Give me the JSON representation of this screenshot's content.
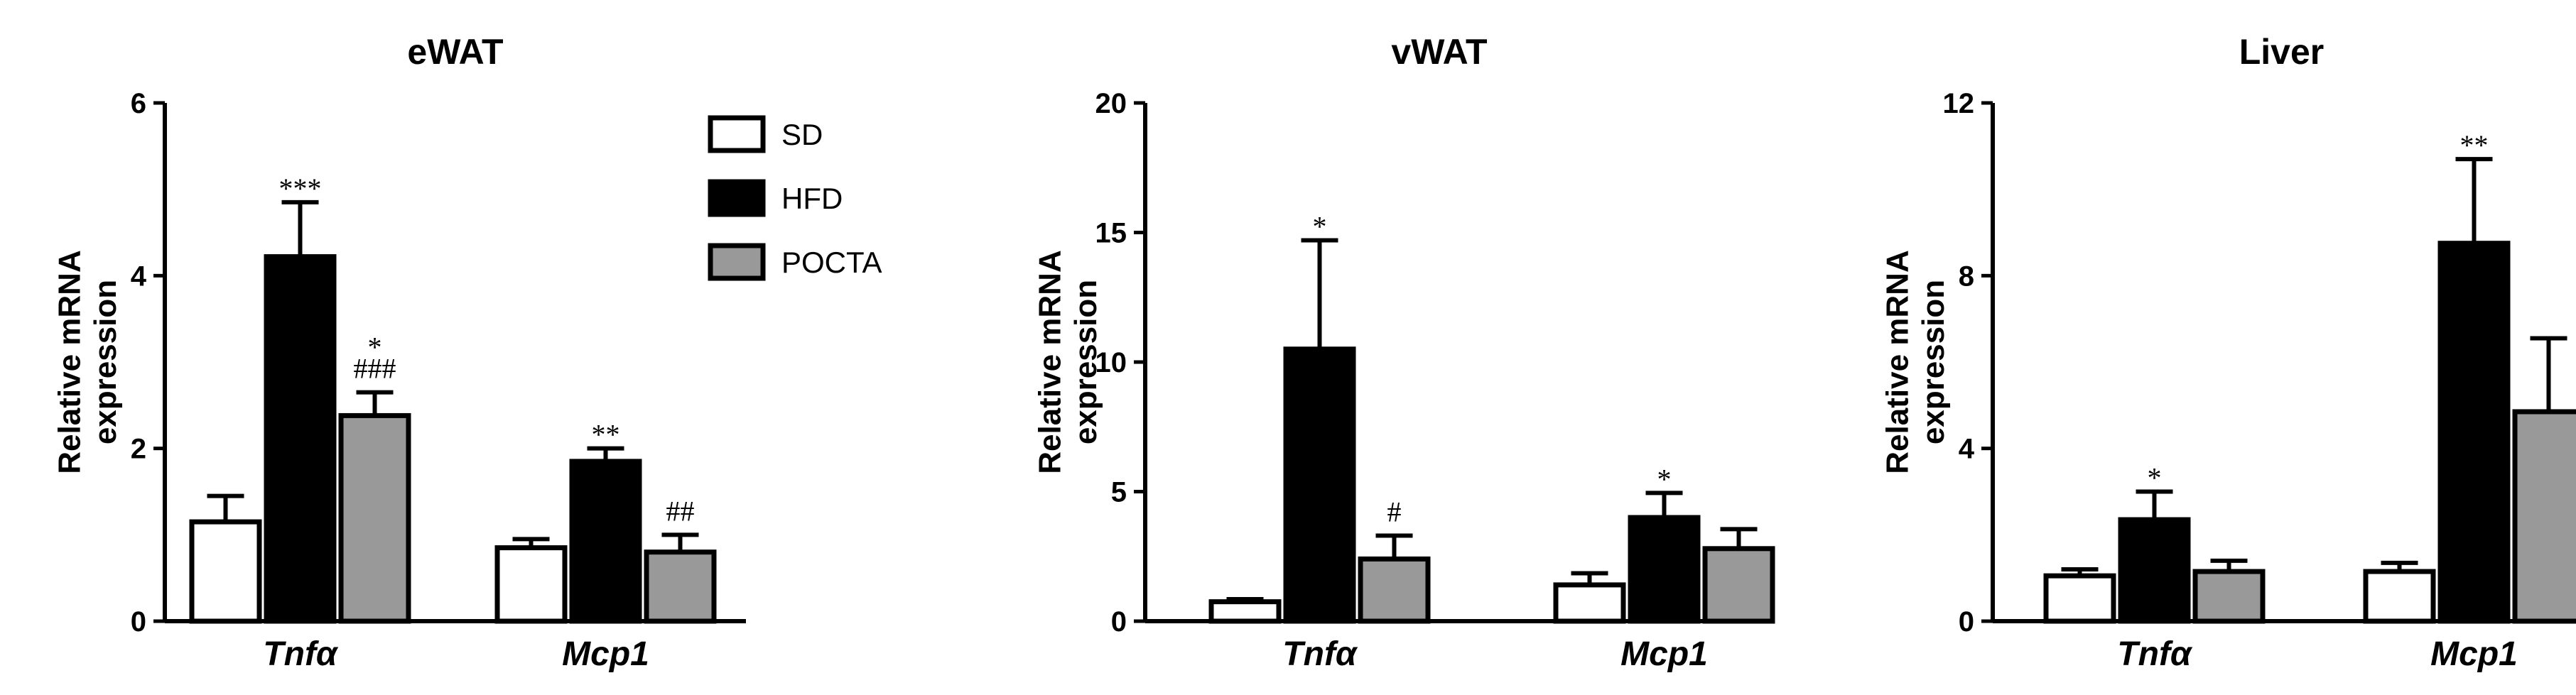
{
  "series_colors": {
    "SD": "#ffffff",
    "HFD": "#000000",
    "POCTA": "#999999"
  },
  "legend": [
    {
      "name": "SD",
      "color": "#ffffff"
    },
    {
      "name": "HFD",
      "color": "#000000"
    },
    {
      "name": "POCTA",
      "color": "#999999"
    }
  ],
  "chart_data": [
    {
      "type": "bar",
      "title": "eWAT",
      "ylabel": "Relative mRNA expression",
      "ylim": [
        0,
        6
      ],
      "yticks": [
        0,
        2,
        4,
        6
      ],
      "categories": [
        "Tnfα",
        "Mcp1"
      ],
      "series": [
        {
          "name": "SD",
          "values": [
            1.15,
            0.85
          ],
          "errors": [
            0.3,
            0.1
          ],
          "annotations": [
            "",
            ""
          ]
        },
        {
          "name": "HFD",
          "values": [
            4.22,
            1.85
          ],
          "errors": [
            0.63,
            0.15
          ],
          "annotations": [
            "***",
            "**"
          ]
        },
        {
          "name": "POCTA",
          "values": [
            2.38,
            0.8
          ],
          "errors": [
            0.27,
            0.2
          ],
          "annotations": [
            "*\n###",
            "##"
          ]
        }
      ]
    },
    {
      "type": "bar",
      "title": "vWAT",
      "ylabel": "Relative mRNA expression",
      "ylim": [
        0,
        20
      ],
      "yticks": [
        0,
        5,
        10,
        15,
        20
      ],
      "categories": [
        "Tnfα",
        "Mcp1"
      ],
      "series": [
        {
          "name": "SD",
          "values": [
            0.75,
            1.4
          ],
          "errors": [
            0.1,
            0.45
          ],
          "annotations": [
            "",
            ""
          ]
        },
        {
          "name": "HFD",
          "values": [
            10.5,
            4.0
          ],
          "errors": [
            4.2,
            0.95
          ],
          "annotations": [
            "*",
            "*"
          ]
        },
        {
          "name": "POCTA",
          "values": [
            2.4,
            2.8
          ],
          "errors": [
            0.9,
            0.75
          ],
          "annotations": [
            "#",
            ""
          ]
        }
      ]
    },
    {
      "type": "bar",
      "title": "Liver",
      "ylabel": "Relative mRNA expression",
      "ylim": [
        0,
        12
      ],
      "yticks": [
        0,
        4,
        8,
        12
      ],
      "categories": [
        "Tnfα",
        "Mcp1"
      ],
      "series": [
        {
          "name": "SD",
          "values": [
            1.05,
            1.15
          ],
          "errors": [
            0.15,
            0.2
          ],
          "annotations": [
            "",
            ""
          ]
        },
        {
          "name": "HFD",
          "values": [
            2.35,
            8.75
          ],
          "errors": [
            0.65,
            1.95
          ],
          "annotations": [
            "*",
            "**"
          ]
        },
        {
          "name": "POCTA",
          "values": [
            1.15,
            4.85
          ],
          "errors": [
            0.25,
            1.7
          ],
          "annotations": [
            "",
            ""
          ]
        }
      ]
    }
  ]
}
